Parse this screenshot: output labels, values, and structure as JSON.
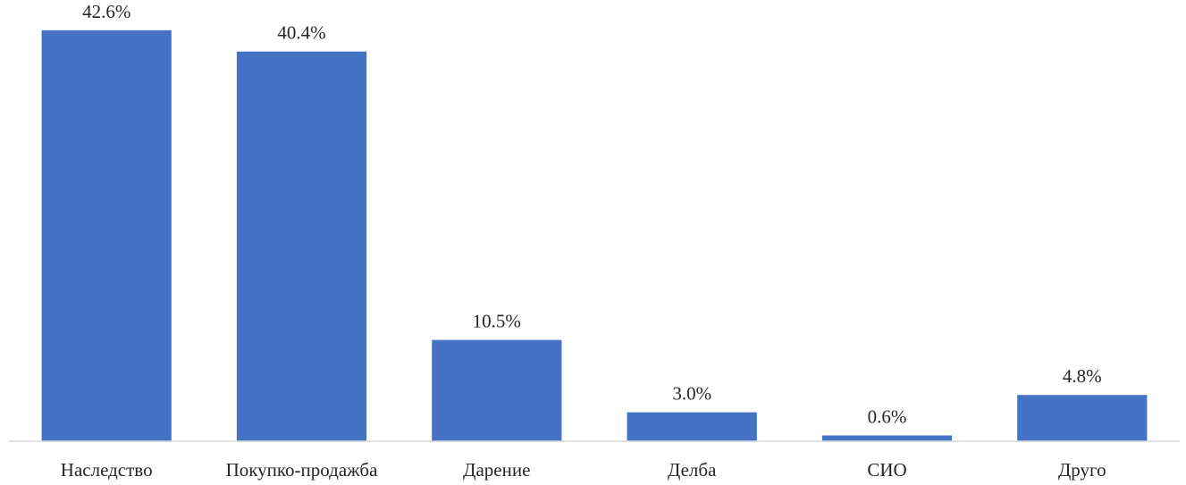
{
  "chart_data": {
    "type": "bar",
    "categories": [
      "Наследство",
      "Покупко-продажба",
      "Дарение",
      "Делба",
      "СИО",
      "Друго"
    ],
    "values": [
      42.6,
      40.4,
      10.5,
      3.0,
      0.6,
      4.8
    ],
    "data_labels": [
      "42.6%",
      "40.4%",
      "10.5%",
      "3.0%",
      "0.6%",
      "4.8%"
    ],
    "title": "",
    "xlabel": "",
    "ylabel": "",
    "ylim": [
      0,
      45
    ],
    "grid": false,
    "legend": "none",
    "bar_color": "#4472C4"
  }
}
